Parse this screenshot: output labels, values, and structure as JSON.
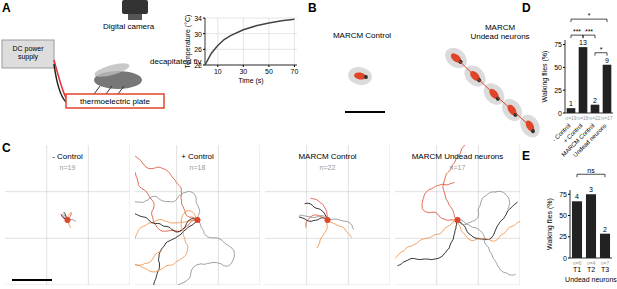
{
  "figure": {
    "panel_labels": [
      "A",
      "B",
      "C",
      "D",
      "E"
    ],
    "schematic": {
      "camera": "Digital camera",
      "power": "DC power supply",
      "fly": "decapitated fly",
      "plate": "thermoelectric plate"
    },
    "panel_b": {
      "titles": [
        "MARCM Control",
        "MARCM Undead neurons"
      ]
    },
    "panel_c": {
      "titles": [
        "- Control",
        "+ Control",
        "MARCM Control",
        "MARCM Undead neurons"
      ],
      "n": [
        "n=19",
        "n=18",
        "n=22",
        "n=17"
      ]
    }
  },
  "chart_data": [
    {
      "type": "line",
      "x_label": "Time (s)",
      "y_label": "Temperature (°C)",
      "x": [
        0,
        5,
        10,
        15,
        20,
        30,
        40,
        50,
        60,
        70
      ],
      "values": [
        22,
        25,
        27,
        28.5,
        29.5,
        31,
        32,
        32.7,
        33.3,
        33.7
      ],
      "color": "#444444",
      "xlim": [
        0,
        72
      ],
      "xticks": [
        10,
        30,
        50,
        70
      ],
      "ylim": [
        22,
        34
      ],
      "yticks": [
        22,
        26,
        30,
        34
      ],
      "grid": true
    },
    {
      "type": "bar",
      "y_label": "Walking flies (%)",
      "categories": [
        "- Control",
        "+ Control",
        "MARCM Control",
        "Undead neurons"
      ],
      "values": [
        5.3,
        72.2,
        9.1,
        52.9
      ],
      "counts": [
        1,
        13,
        2,
        9
      ],
      "n_labels": [
        "n=19",
        "n=18",
        "n=22",
        "n=17"
      ],
      "significance": [
        {
          "from": 0,
          "to": 3,
          "label": "*"
        },
        {
          "from": 0,
          "to": 1,
          "label": "***"
        },
        {
          "from": 1,
          "to": 2,
          "label": "***"
        },
        {
          "from": 2,
          "to": 3,
          "label": "*"
        }
      ],
      "color": "#222222",
      "ylim": [
        0,
        80
      ],
      "yticks": [
        0,
        25,
        50,
        75
      ]
    },
    {
      "type": "bar",
      "y_label": "Walking flies (%)",
      "x_label": "Undead neurons",
      "categories": [
        "T1",
        "T2",
        "T3"
      ],
      "values": [
        66.7,
        75,
        28.6
      ],
      "counts": [
        4,
        3,
        2
      ],
      "n_labels": [
        "n=6",
        "n=4",
        "n=7"
      ],
      "significance": [
        {
          "from": 0,
          "to": 2,
          "label": "ns"
        }
      ],
      "color": "#222222",
      "ylim": [
        0,
        80
      ],
      "yticks": [
        0,
        25,
        50,
        75
      ]
    }
  ]
}
